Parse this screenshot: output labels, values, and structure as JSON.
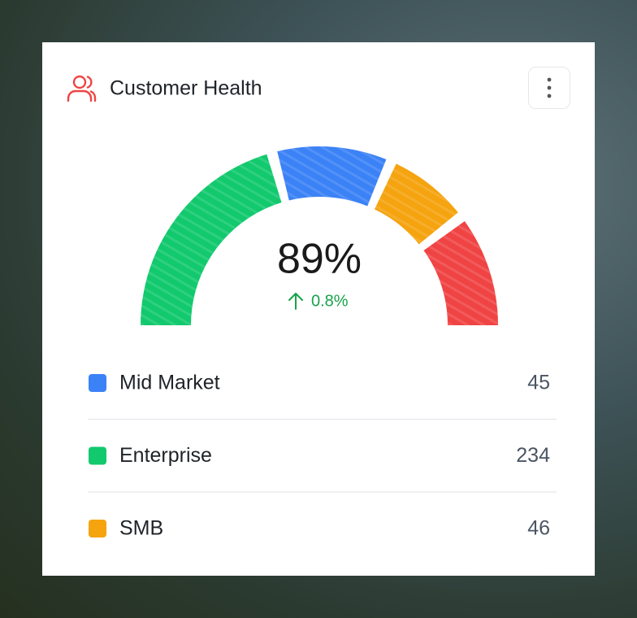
{
  "card": {
    "title": "Customer Health",
    "gauge": {
      "value": "89%",
      "change": "0.8%",
      "segments": [
        {
          "color": "#12c96e",
          "value": 43
        },
        {
          "color": "#3b82f6",
          "value": 21
        },
        {
          "color": "#f5a30f",
          "value": 15
        },
        {
          "color": "#f04444",
          "value": 21
        }
      ]
    },
    "legend": [
      {
        "name": "Mid Market",
        "color": "#3b82f6",
        "value": "45"
      },
      {
        "name": "Enterprise",
        "color": "#12c96e",
        "value": "234"
      },
      {
        "name": "SMB",
        "color": "#f5a30f",
        "value": "46"
      }
    ]
  }
}
